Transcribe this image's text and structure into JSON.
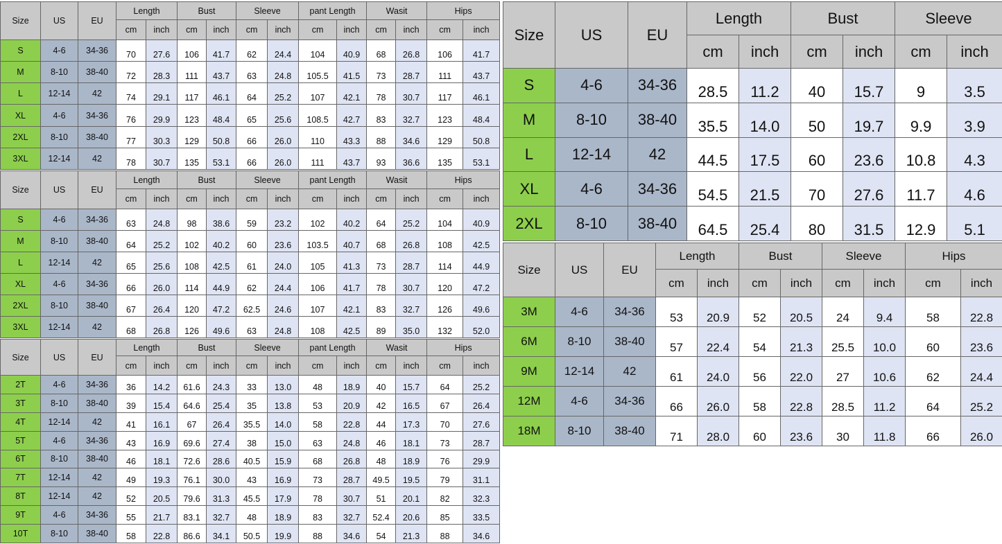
{
  "colors": {
    "header": "#c9c9c9",
    "size_column": "#8dcf4c",
    "us_eu_columns": "#aab7c9",
    "inch_columns": "#dfe4f4",
    "cm_columns": "#ffffff"
  },
  "tables": [
    {
      "headers": {
        "size": "Size",
        "us": "US",
        "eu": "EU",
        "unit_cm": "cm",
        "unit_inch": "inch"
      },
      "groups": [
        "Length",
        "Bust",
        "Sleeve",
        "pant Length",
        "Wasit",
        "Hips"
      ],
      "rows": [
        {
          "size": "S",
          "us": "4-6",
          "eu": "34-36",
          "values": [
            "70",
            "27.6",
            "106",
            "41.7",
            "62",
            "24.4",
            "104",
            "40.9",
            "68",
            "26.8",
            "106",
            "41.7"
          ]
        },
        {
          "size": "M",
          "us": "8-10",
          "eu": "38-40",
          "values": [
            "72",
            "28.3",
            "111",
            "43.7",
            "63",
            "24.8",
            "105.5",
            "41.5",
            "73",
            "28.7",
            "111",
            "43.7"
          ]
        },
        {
          "size": "L",
          "us": "12-14",
          "eu": "42",
          "values": [
            "74",
            "29.1",
            "117",
            "46.1",
            "64",
            "25.2",
            "107",
            "42.1",
            "78",
            "30.7",
            "117",
            "46.1"
          ]
        },
        {
          "size": "XL",
          "us": "4-6",
          "eu": "34-36",
          "values": [
            "76",
            "29.9",
            "123",
            "48.4",
            "65",
            "25.6",
            "108.5",
            "42.7",
            "83",
            "32.7",
            "123",
            "48.4"
          ]
        },
        {
          "size": "2XL",
          "us": "8-10",
          "eu": "38-40",
          "values": [
            "77",
            "30.3",
            "129",
            "50.8",
            "66",
            "26.0",
            "110",
            "43.3",
            "88",
            "34.6",
            "129",
            "50.8"
          ]
        },
        {
          "size": "3XL",
          "us": "12-14",
          "eu": "42",
          "values": [
            "78",
            "30.7",
            "135",
            "53.1",
            "66",
            "26.0",
            "111",
            "43.7",
            "93",
            "36.6",
            "135",
            "53.1"
          ]
        }
      ]
    },
    {
      "headers": {
        "size": "Size",
        "us": "US",
        "eu": "EU",
        "unit_cm": "cm",
        "unit_inch": "inch"
      },
      "groups": [
        "Length",
        "Bust",
        "Sleeve",
        "pant Length",
        "Wasit",
        "Hips"
      ],
      "rows": [
        {
          "size": "S",
          "us": "4-6",
          "eu": "34-36",
          "values": [
            "63",
            "24.8",
            "98",
            "38.6",
            "59",
            "23.2",
            "102",
            "40.2",
            "64",
            "25.2",
            "104",
            "40.9"
          ]
        },
        {
          "size": "M",
          "us": "8-10",
          "eu": "38-40",
          "values": [
            "64",
            "25.2",
            "102",
            "40.2",
            "60",
            "23.6",
            "103.5",
            "40.7",
            "68",
            "26.8",
            "108",
            "42.5"
          ]
        },
        {
          "size": "L",
          "us": "12-14",
          "eu": "42",
          "values": [
            "65",
            "25.6",
            "108",
            "42.5",
            "61",
            "24.0",
            "105",
            "41.3",
            "73",
            "28.7",
            "114",
            "44.9"
          ]
        },
        {
          "size": "XL",
          "us": "4-6",
          "eu": "34-36",
          "values": [
            "66",
            "26.0",
            "114",
            "44.9",
            "62",
            "24.4",
            "106",
            "41.7",
            "78",
            "30.7",
            "120",
            "47.2"
          ]
        },
        {
          "size": "2XL",
          "us": "8-10",
          "eu": "38-40",
          "values": [
            "67",
            "26.4",
            "120",
            "47.2",
            "62.5",
            "24.6",
            "107",
            "42.1",
            "83",
            "32.7",
            "126",
            "49.6"
          ]
        },
        {
          "size": "3XL",
          "us": "12-14",
          "eu": "42",
          "values": [
            "68",
            "26.8",
            "126",
            "49.6",
            "63",
            "24.8",
            "108",
            "42.5",
            "89",
            "35.0",
            "132",
            "52.0"
          ]
        }
      ]
    },
    {
      "headers": {
        "size": "Size",
        "us": "US",
        "eu": "EU",
        "unit_cm": "cm",
        "unit_inch": "inch"
      },
      "groups": [
        "Length",
        "Bust",
        "Sleeve",
        "pant Length",
        "Wasit",
        "Hips"
      ],
      "rows": [
        {
          "size": "2T",
          "us": "4-6",
          "eu": "34-36",
          "values": [
            "36",
            "14.2",
            "61.6",
            "24.3",
            "33",
            "13.0",
            "48",
            "18.9",
            "40",
            "15.7",
            "64",
            "25.2"
          ]
        },
        {
          "size": "3T",
          "us": "8-10",
          "eu": "38-40",
          "values": [
            "39",
            "15.4",
            "64.6",
            "25.4",
            "35",
            "13.8",
            "53",
            "20.9",
            "42",
            "16.5",
            "67",
            "26.4"
          ]
        },
        {
          "size": "4T",
          "us": "12-14",
          "eu": "42",
          "values": [
            "41",
            "16.1",
            "67",
            "26.4",
            "35.5",
            "14.0",
            "58",
            "22.8",
            "44",
            "17.3",
            "70",
            "27.6"
          ]
        },
        {
          "size": "5T",
          "us": "4-6",
          "eu": "34-36",
          "values": [
            "43",
            "16.9",
            "69.6",
            "27.4",
            "38",
            "15.0",
            "63",
            "24.8",
            "46",
            "18.1",
            "73",
            "28.7"
          ]
        },
        {
          "size": "6T",
          "us": "8-10",
          "eu": "38-40",
          "values": [
            "46",
            "18.1",
            "72.6",
            "28.6",
            "40.5",
            "15.9",
            "68",
            "26.8",
            "48",
            "18.9",
            "76",
            "29.9"
          ]
        },
        {
          "size": "7T",
          "us": "12-14",
          "eu": "42",
          "values": [
            "49",
            "19.3",
            "76.1",
            "30.0",
            "43",
            "16.9",
            "73",
            "28.7",
            "49.5",
            "19.5",
            "79",
            "31.1"
          ]
        },
        {
          "size": "8T",
          "us": "12-14",
          "eu": "42",
          "values": [
            "52",
            "20.5",
            "79.6",
            "31.3",
            "45.5",
            "17.9",
            "78",
            "30.7",
            "51",
            "20.1",
            "82",
            "32.3"
          ]
        },
        {
          "size": "9T",
          "us": "4-6",
          "eu": "34-36",
          "values": [
            "55",
            "21.7",
            "83.1",
            "32.7",
            "48",
            "18.9",
            "83",
            "32.7",
            "52.4",
            "20.6",
            "85",
            "33.5"
          ]
        },
        {
          "size": "10T",
          "us": "8-10",
          "eu": "38-40",
          "values": [
            "58",
            "22.8",
            "86.6",
            "34.1",
            "50.5",
            "19.9",
            "88",
            "34.6",
            "54",
            "21.3",
            "88",
            "34.6"
          ]
        }
      ]
    },
    {
      "headers": {
        "size": "Size",
        "us": "US",
        "eu": "EU",
        "unit_cm": "cm",
        "unit_inch": "inch"
      },
      "groups": [
        "Length",
        "Bust",
        "Sleeve"
      ],
      "rows": [
        {
          "size": "S",
          "us": "4-6",
          "eu": "34-36",
          "values": [
            "28.5",
            "11.2",
            "40",
            "15.7",
            "9",
            "3.5"
          ]
        },
        {
          "size": "M",
          "us": "8-10",
          "eu": "38-40",
          "values": [
            "35.5",
            "14.0",
            "50",
            "19.7",
            "9.9",
            "3.9"
          ]
        },
        {
          "size": "L",
          "us": "12-14",
          "eu": "42",
          "values": [
            "44.5",
            "17.5",
            "60",
            "23.6",
            "10.8",
            "4.3"
          ]
        },
        {
          "size": "XL",
          "us": "4-6",
          "eu": "34-36",
          "values": [
            "54.5",
            "21.5",
            "70",
            "27.6",
            "11.7",
            "4.6"
          ]
        },
        {
          "size": "2XL",
          "us": "8-10",
          "eu": "38-40",
          "values": [
            "64.5",
            "25.4",
            "80",
            "31.5",
            "12.9",
            "5.1"
          ]
        }
      ]
    },
    {
      "headers": {
        "size": "Size",
        "us": "US",
        "eu": "EU",
        "unit_cm": "cm",
        "unit_inch": "inch"
      },
      "groups": [
        "Length",
        "Bust",
        "Sleeve",
        "Hips"
      ],
      "rows": [
        {
          "size": "3M",
          "us": "4-6",
          "eu": "34-36",
          "values": [
            "53",
            "20.9",
            "52",
            "20.5",
            "24",
            "9.4",
            "58",
            "22.8"
          ]
        },
        {
          "size": "6M",
          "us": "8-10",
          "eu": "38-40",
          "values": [
            "57",
            "22.4",
            "54",
            "21.3",
            "25.5",
            "10.0",
            "60",
            "23.6"
          ]
        },
        {
          "size": "9M",
          "us": "12-14",
          "eu": "42",
          "values": [
            "61",
            "24.0",
            "56",
            "22.0",
            "27",
            "10.6",
            "62",
            "24.4"
          ]
        },
        {
          "size": "12M",
          "us": "4-6",
          "eu": "34-36",
          "values": [
            "66",
            "26.0",
            "58",
            "22.8",
            "28.5",
            "11.2",
            "64",
            "25.2"
          ]
        },
        {
          "size": "18M",
          "us": "8-10",
          "eu": "38-40",
          "values": [
            "71",
            "28.0",
            "60",
            "23.6",
            "30",
            "11.8",
            "66",
            "26.0"
          ]
        }
      ]
    }
  ]
}
